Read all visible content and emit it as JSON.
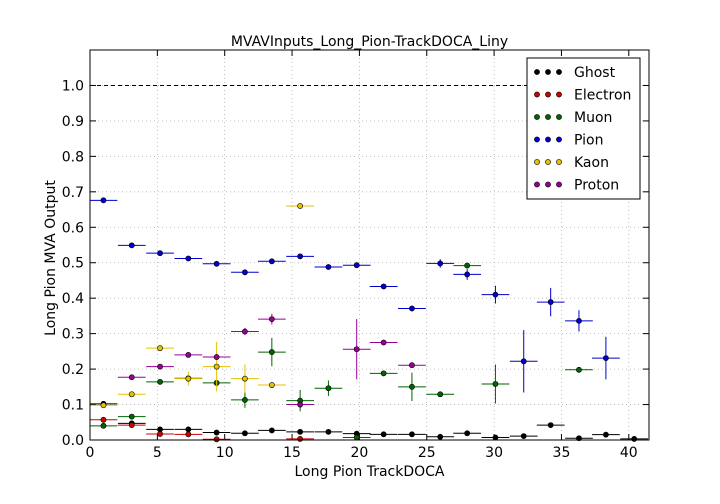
{
  "chart_data": {
    "type": "scatter",
    "title": "MVAVInputs_Long_Pion-TrackDOCA_Liny",
    "xlabel": "Long Pion TrackDOCA",
    "ylabel": "Long Pion MVA Output",
    "xlim": [
      0,
      41.5
    ],
    "ylim": [
      0,
      1.1
    ],
    "xticks": [
      "0",
      "5",
      "10",
      "15",
      "20",
      "25",
      "30",
      "35",
      "40"
    ],
    "yticks": [
      "0.0",
      "0.1",
      "0.2",
      "0.3",
      "0.4",
      "0.5",
      "0.6",
      "0.7",
      "0.8",
      "0.9",
      "1.0"
    ],
    "grid": true,
    "reference_line": 1.0,
    "legend_position": "top-right",
    "series": [
      {
        "name": "Ghost",
        "color": "#000000",
        "points": [
          [
            1.0,
            0.102,
            0.002
          ],
          [
            3.1,
            0.047,
            0.003
          ],
          [
            5.2,
            0.03,
            0.002
          ],
          [
            7.3,
            0.03,
            0.002
          ],
          [
            9.4,
            0.021,
            0.002
          ],
          [
            11.5,
            0.019,
            0.002
          ],
          [
            13.5,
            0.027,
            0.002
          ],
          [
            15.6,
            0.023,
            0.002
          ],
          [
            17.7,
            0.023,
            0.002
          ],
          [
            19.8,
            0.018,
            0.002
          ],
          [
            21.8,
            0.016,
            0.002
          ],
          [
            23.9,
            0.016,
            0.002
          ],
          [
            26.0,
            0.009,
            0.002
          ],
          [
            28.0,
            0.019,
            0.002
          ],
          [
            30.1,
            0.007,
            0.002
          ],
          [
            32.2,
            0.011,
            0.002
          ],
          [
            34.2,
            0.042,
            0.004
          ],
          [
            36.3,
            0.005,
            0.002
          ],
          [
            38.3,
            0.015,
            0.002
          ],
          [
            40.4,
            0.003,
            0.002
          ]
        ]
      },
      {
        "name": "Electron",
        "color": "#cc0000",
        "points": [
          [
            1.0,
            0.057,
            0.005
          ],
          [
            3.1,
            0.042,
            0.005
          ],
          [
            5.2,
            0.017,
            0.003
          ],
          [
            7.3,
            0.016,
            0.003
          ],
          [
            9.4,
            0.002,
            0.002
          ],
          [
            15.6,
            0.003,
            0.002
          ]
        ]
      },
      {
        "name": "Muon",
        "color": "#006400",
        "points": [
          [
            1.0,
            0.04,
            0.004
          ],
          [
            3.1,
            0.066,
            0.005
          ],
          [
            5.2,
            0.164,
            0.006
          ],
          [
            7.3,
            0.174,
            0.008
          ],
          [
            9.4,
            0.161,
            0.008
          ],
          [
            11.5,
            0.113,
            0.022
          ],
          [
            13.5,
            0.248,
            0.04
          ],
          [
            15.6,
            0.111,
            0.03
          ],
          [
            17.7,
            0.146,
            0.022
          ],
          [
            19.8,
            0.007,
            0.006
          ],
          [
            21.8,
            0.188,
            0.008
          ],
          [
            23.9,
            0.15,
            0.04
          ],
          [
            26.0,
            0.129,
            0.006
          ],
          [
            28.0,
            0.492,
            0.006
          ],
          [
            30.1,
            0.158,
            0.055
          ],
          [
            36.3,
            0.198,
            0.006
          ]
        ]
      },
      {
        "name": "Pion",
        "color": "#0000cc",
        "points": [
          [
            1.0,
            0.676,
            0.003
          ],
          [
            3.1,
            0.549,
            0.003
          ],
          [
            5.2,
            0.527,
            0.003
          ],
          [
            7.3,
            0.512,
            0.003
          ],
          [
            9.4,
            0.497,
            0.004
          ],
          [
            11.5,
            0.473,
            0.004
          ],
          [
            13.5,
            0.504,
            0.004
          ],
          [
            15.6,
            0.518,
            0.004
          ],
          [
            17.7,
            0.488,
            0.005
          ],
          [
            19.8,
            0.493,
            0.006
          ],
          [
            21.8,
            0.433,
            0.006
          ],
          [
            23.9,
            0.371,
            0.008
          ],
          [
            26.0,
            0.498,
            0.012
          ],
          [
            28.0,
            0.467,
            0.015
          ],
          [
            30.1,
            0.41,
            0.025
          ],
          [
            32.2,
            0.222,
            0.088
          ],
          [
            34.2,
            0.389,
            0.04
          ],
          [
            36.3,
            0.336,
            0.03
          ],
          [
            38.3,
            0.231,
            0.06
          ]
        ]
      },
      {
        "name": "Kaon",
        "color": "#e6c200",
        "points": [
          [
            1.0,
            0.098,
            0.005
          ],
          [
            3.1,
            0.129,
            0.006
          ],
          [
            5.2,
            0.259,
            0.008
          ],
          [
            7.3,
            0.173,
            0.02
          ],
          [
            9.4,
            0.207,
            0.07
          ],
          [
            11.5,
            0.173,
            0.04
          ],
          [
            13.5,
            0.155,
            0.008
          ],
          [
            15.6,
            0.66,
            0.006
          ]
        ]
      },
      {
        "name": "Proton",
        "color": "#990099",
        "points": [
          [
            3.1,
            0.177,
            0.005
          ],
          [
            5.2,
            0.207,
            0.005
          ],
          [
            7.3,
            0.24,
            0.005
          ],
          [
            9.4,
            0.234,
            0.008
          ],
          [
            11.5,
            0.306,
            0.01
          ],
          [
            13.5,
            0.341,
            0.015
          ],
          [
            15.6,
            0.1,
            0.01
          ],
          [
            19.8,
            0.256,
            0.085
          ],
          [
            21.8,
            0.275,
            0.006
          ],
          [
            23.9,
            0.211,
            0.006
          ]
        ]
      }
    ]
  }
}
